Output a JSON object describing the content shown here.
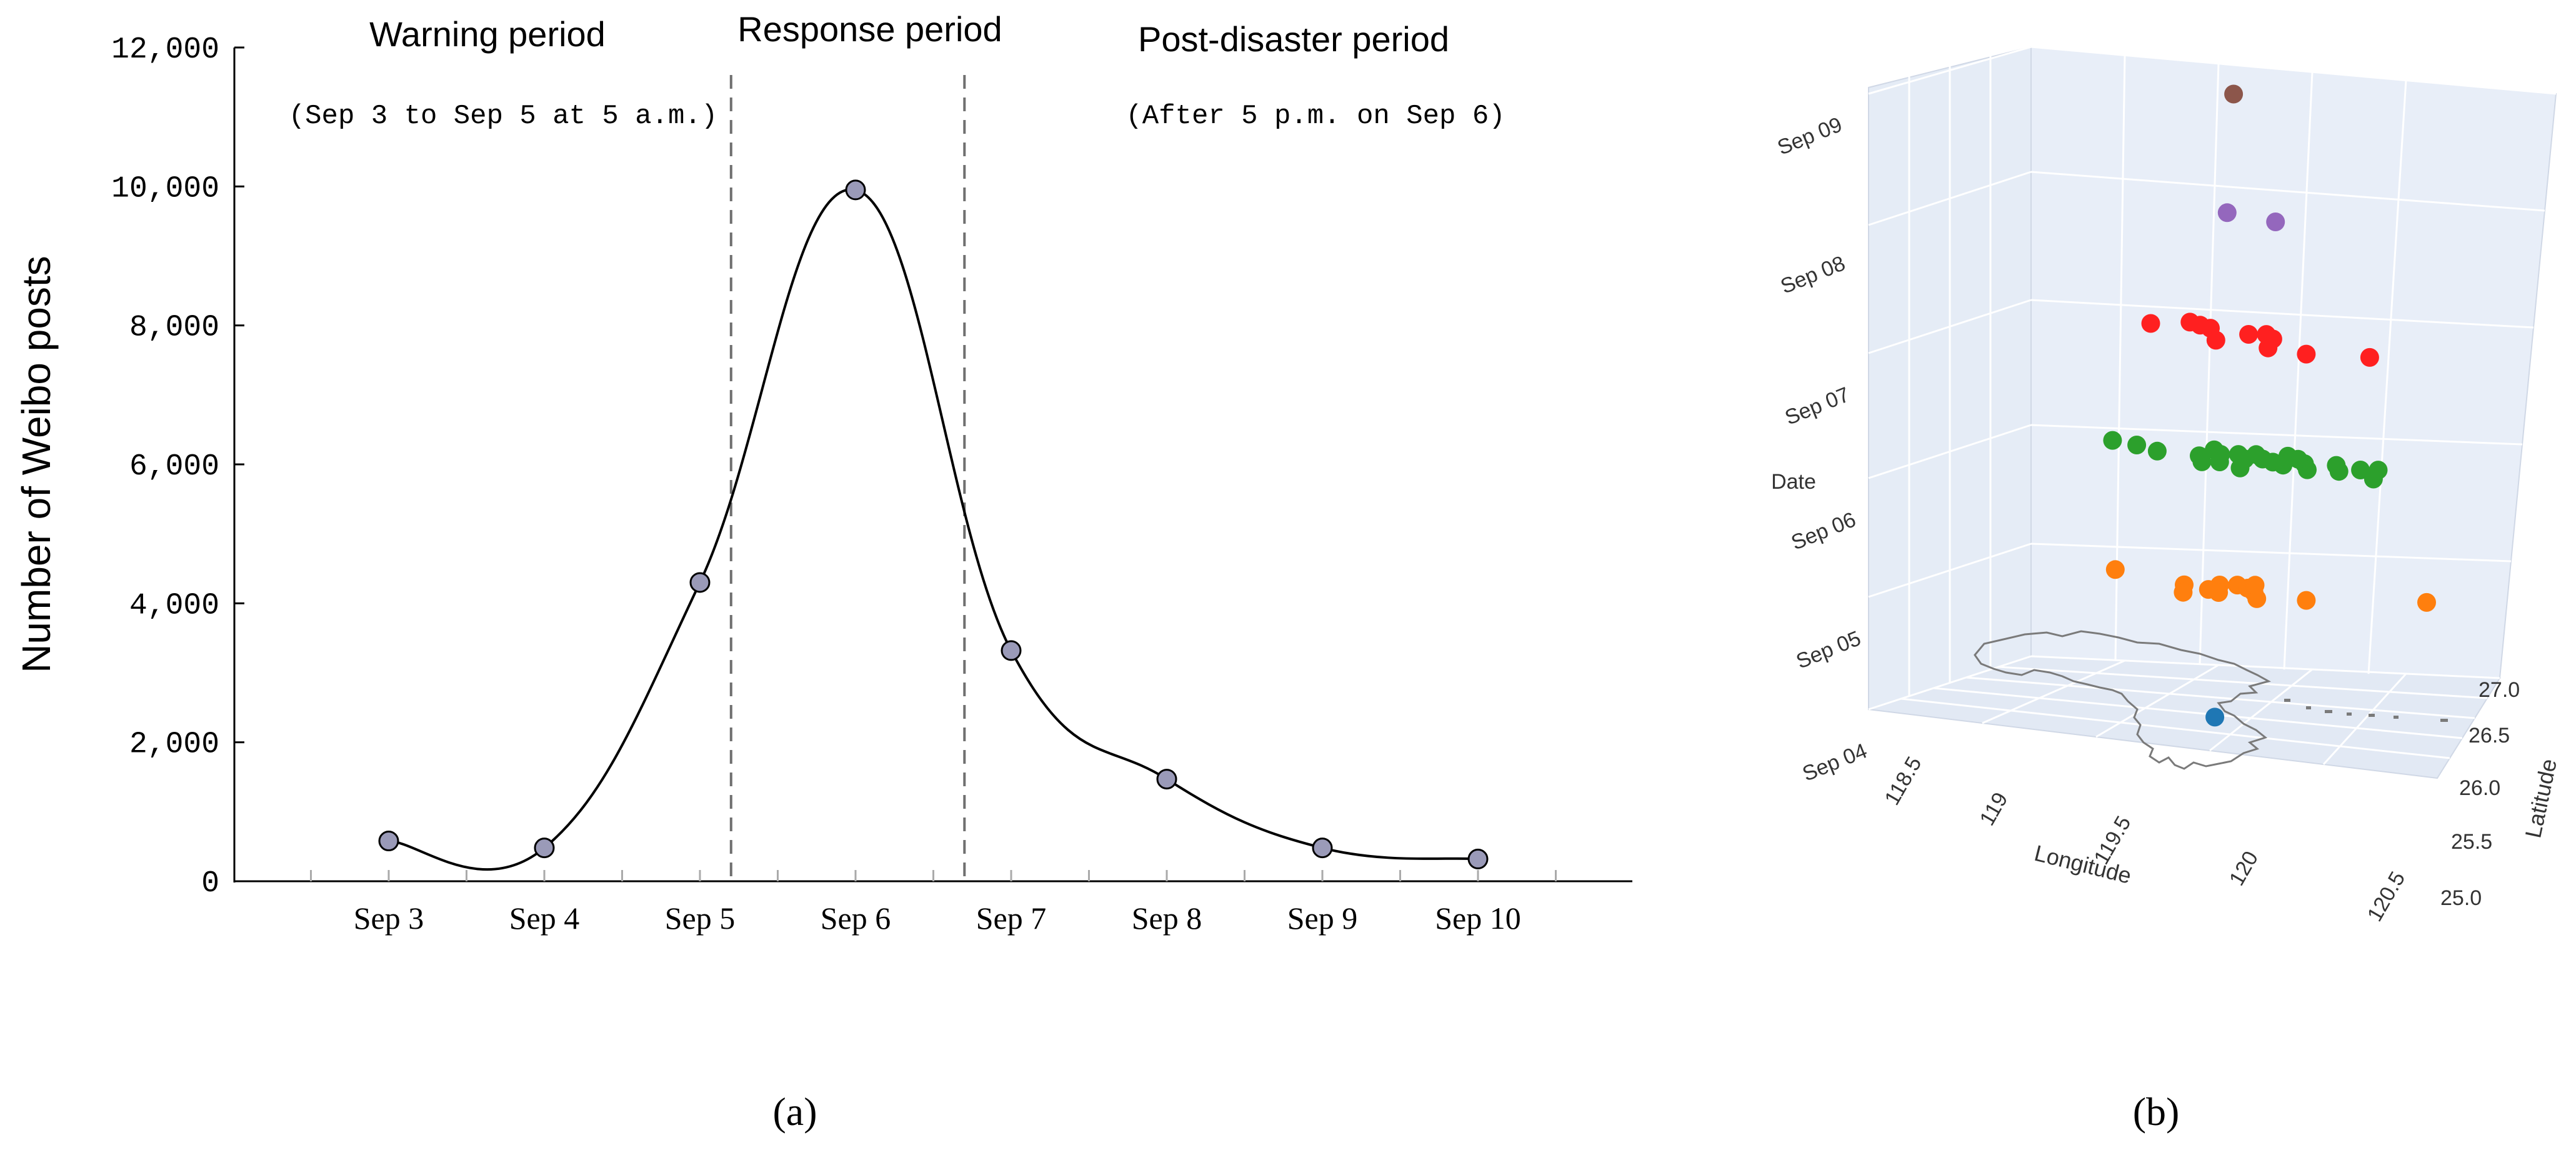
{
  "chart_data": [
    {
      "type": "line",
      "panel_label": "(a)",
      "ylabel": "Number of Weibo posts",
      "ylim": [
        0,
        12000
      ],
      "yticks": [
        "0",
        "2,000",
        "4,000",
        "6,000",
        "8,000",
        "10,000",
        "12,000"
      ],
      "ytick_values": [
        0,
        2000,
        4000,
        6000,
        8000,
        10000,
        12000
      ],
      "categories": [
        "Sep 3",
        "Sep 4",
        "Sep 5",
        "Sep 6",
        "Sep 7",
        "Sep 8",
        "Sep 9",
        "Sep 10"
      ],
      "values": [
        580,
        480,
        4300,
        9950,
        3320,
        1470,
        480,
        320
      ],
      "periods": [
        {
          "title": "Warning period",
          "subtitle": "(Sep 3 to Sep 5 at 5 a.m.)"
        },
        {
          "title": "Response period",
          "subtitle": ""
        },
        {
          "title": "Post-disaster period",
          "subtitle": "(After 5 p.m. on Sep 6)"
        }
      ],
      "dividers_x": [
        5.2,
        6.7
      ],
      "colors": {
        "marker": "#9a9ab8",
        "line": "#000000",
        "divider": "#707070"
      }
    },
    {
      "type": "scatter",
      "panel_label": "(b)",
      "zlabel": "Date",
      "xlabel": "Longitude",
      "ylabel": "Latitude",
      "xlim": [
        118.5,
        120.5
      ],
      "ylim": [
        25.0,
        27.0
      ],
      "zticks": [
        "Sep 04",
        "Sep 05",
        "Sep 06",
        "Sep 07",
        "Sep 08",
        "Sep 09"
      ],
      "xticks": [
        "118.5",
        "119",
        "119.5",
        "120",
        "120.5"
      ],
      "yticks": [
        "25.0",
        "25.5",
        "26.0",
        "26.5",
        "27.0"
      ],
      "series": [
        {
          "name": "Sep 04",
          "color": "#1f77b4",
          "points": [
            [
              119.45,
              25.95
            ]
          ]
        },
        {
          "name": "Sep 05",
          "color": "#ff7f0e",
          "points": [
            [
              119.0,
              26.3
            ],
            [
              119.3,
              26.1
            ],
            [
              119.4,
              26.2
            ],
            [
              119.45,
              26.25
            ],
            [
              119.5,
              26.2
            ],
            [
              119.55,
              26.1
            ],
            [
              119.45,
              26.0
            ],
            [
              119.35,
              25.9
            ],
            [
              119.6,
              25.95
            ],
            [
              119.75,
              26.05
            ],
            [
              120.1,
              26.35
            ],
            [
              119.5,
              26.3
            ],
            [
              119.4,
              26.05
            ]
          ]
        },
        {
          "name": "Sep 06",
          "color": "#2ca02c",
          "points": [
            [
              118.95,
              26.45
            ],
            [
              119.05,
              26.4
            ],
            [
              119.15,
              26.3
            ],
            [
              119.3,
              26.5
            ],
            [
              119.35,
              26.4
            ],
            [
              119.4,
              26.45
            ],
            [
              119.45,
              26.5
            ],
            [
              119.5,
              26.4
            ],
            [
              119.55,
              26.35
            ],
            [
              119.6,
              26.3
            ],
            [
              119.65,
              26.4
            ],
            [
              119.7,
              26.25
            ],
            [
              119.8,
              26.3
            ],
            [
              119.85,
              26.4
            ],
            [
              119.9,
              26.45
            ],
            [
              119.95,
              26.2
            ],
            [
              119.4,
              26.2
            ],
            [
              119.5,
              26.1
            ],
            [
              119.3,
              26.3
            ],
            [
              119.6,
              26.5
            ],
            [
              119.45,
              26.35
            ],
            [
              119.55,
              26.55
            ],
            [
              119.75,
              26.45
            ],
            [
              119.35,
              26.15
            ]
          ]
        },
        {
          "name": "Sep 07",
          "color": "#ff2020",
          "points": [
            [
              119.1,
              26.4
            ],
            [
              119.25,
              26.5
            ],
            [
              119.3,
              26.45
            ],
            [
              119.45,
              26.4
            ],
            [
              119.5,
              26.45
            ],
            [
              119.55,
              26.35
            ],
            [
              119.4,
              26.15
            ],
            [
              119.6,
              26.1
            ],
            [
              119.75,
              26.05
            ],
            [
              119.95,
              26.15
            ],
            [
              119.2,
              26.55
            ]
          ]
        },
        {
          "name": "Sep 08",
          "color": "#9467bd",
          "points": [
            [
              119.4,
              26.3
            ],
            [
              119.6,
              26.2
            ]
          ]
        },
        {
          "name": "Sep 09",
          "color": "#8c564b",
          "points": [
            [
              119.45,
              26.2
            ]
          ]
        }
      ],
      "colors": {
        "pane": "#e5ecf6",
        "grid": "#ffffff",
        "coastline": "#7a7a7a"
      }
    }
  ]
}
